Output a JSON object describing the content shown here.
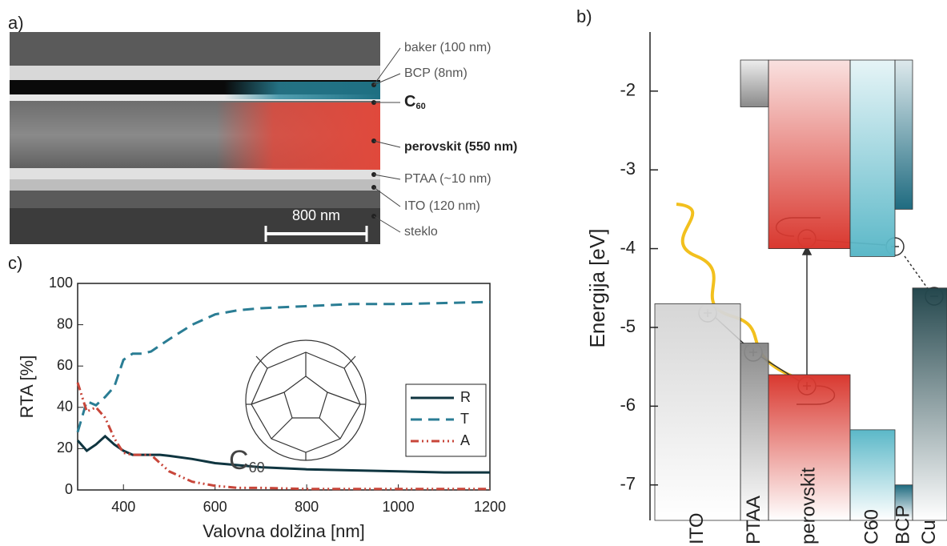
{
  "panel_a": {
    "letter": "a)",
    "labels": [
      "baker (100 nm)",
      "BCP (8nm)",
      "perovskit (550 nm)",
      "PTAA (~10 nm)",
      "ITO (120 nm)",
      "steklo"
    ],
    "c60_label": {
      "base": "C",
      "sub": "60"
    },
    "scale_bar": "800 nm"
  },
  "chart_data": [
    {
      "type": "energy_levels",
      "letter": "b)",
      "ylabel": "Energija [eV]",
      "categories": [
        "ITO",
        "PTAA",
        "perovskit",
        "C60",
        "BCP",
        "Cu"
      ],
      "upper": [
        null,
        -2.2,
        -4.0,
        -4.1,
        -3.5,
        null
      ],
      "lower": [
        -4.7,
        -5.2,
        -5.6,
        -6.3,
        -7.0,
        -4.5
      ],
      "colors": [
        "#d6d6d6",
        "#8a8a8a",
        "#d9382f",
        "#5bb8c8",
        "#1f6b80",
        "#24474d"
      ],
      "ylim": [
        -7.45,
        -1.25
      ],
      "yticks": [
        -7,
        -6,
        -5,
        -4,
        -3,
        -2
      ]
    },
    {
      "type": "line",
      "letter": "c)",
      "xlabel": "Valovna dolžina [nm]",
      "ylabel": "RTA [%]",
      "x": [
        300,
        320,
        340,
        360,
        380,
        400,
        420,
        440,
        460,
        480,
        500,
        550,
        600,
        650,
        700,
        800,
        900,
        1000,
        1100,
        1200
      ],
      "series": [
        {
          "name": "R",
          "color": "#0f3540",
          "dash": "solid",
          "values": [
            24,
            19,
            22,
            26,
            22,
            19,
            17,
            17,
            17,
            17,
            16.5,
            15,
            13,
            12,
            11,
            10,
            9.5,
            9,
            8.5,
            8.5
          ]
        },
        {
          "name": "T",
          "color": "#2a7d94",
          "dash": "dashed",
          "values": [
            28,
            43,
            41,
            45,
            50,
            63,
            66,
            66,
            67,
            70,
            73,
            80,
            85,
            87,
            88,
            89,
            90,
            90,
            90.5,
            91
          ]
        },
        {
          "name": "A",
          "color": "#c8463a",
          "dash": "dashdot",
          "values": [
            52,
            38,
            40,
            35,
            25,
            18,
            17,
            17,
            17,
            13,
            9,
            4,
            2,
            1,
            1,
            0.5,
            0.5,
            0.5,
            0.5,
            0.5
          ]
        }
      ],
      "xlim": [
        300,
        1200
      ],
      "ylim": [
        0,
        100
      ],
      "xticks": [
        400,
        600,
        800,
        1000,
        1200
      ],
      "yticks": [
        0,
        20,
        40,
        60,
        80,
        100
      ],
      "legend": "lower right",
      "annotation": {
        "base": "C",
        "sub": "60"
      }
    }
  ]
}
